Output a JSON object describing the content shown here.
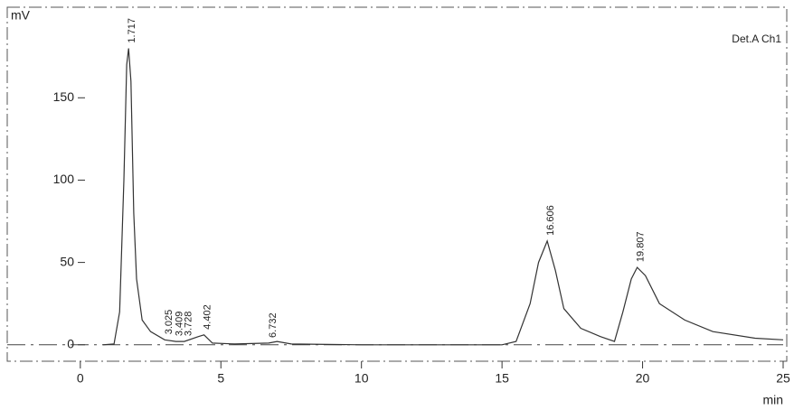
{
  "chart_data": {
    "type": "line",
    "y_label": "mV",
    "x_label": "min",
    "annotation": "Det.A Ch1",
    "x": [
      0.8,
      1.2,
      1.4,
      1.55,
      1.65,
      1.717,
      1.8,
      1.9,
      2.0,
      2.2,
      2.5,
      3.0,
      3.4,
      3.7,
      4.2,
      4.4,
      4.7,
      5.5,
      6.7,
      7.0,
      7.5,
      10,
      15,
      15.5,
      16,
      16.3,
      16.606,
      16.9,
      17.2,
      17.8,
      18.5,
      19.0,
      19.3,
      19.6,
      19.807,
      20.1,
      20.6,
      21.5,
      22.5,
      24,
      25
    ],
    "values": [
      0,
      0.5,
      20,
      100,
      170,
      180,
      160,
      80,
      40,
      15,
      8,
      3,
      2,
      2,
      5,
      6,
      1,
      0.5,
      1,
      2,
      0.5,
      0,
      0,
      2,
      25,
      50,
      63,
      45,
      22,
      10,
      5,
      2,
      20,
      40,
      47,
      42,
      25,
      15,
      8,
      4,
      3
    ],
    "color": "#333333",
    "peaks": {
      "x": [
        1.717,
        3.025,
        3.409,
        3.728,
        4.402,
        6.732,
        16.606,
        19.807
      ],
      "y": [
        180,
        3,
        2,
        2,
        6,
        1,
        63,
        47
      ]
    },
    "xlim": [
      -2.6,
      25
    ],
    "ylim": [
      -10,
      205
    ],
    "xticks": [
      0,
      5,
      10,
      15,
      20,
      25
    ],
    "yticks": [
      0,
      50,
      100,
      150
    ]
  }
}
